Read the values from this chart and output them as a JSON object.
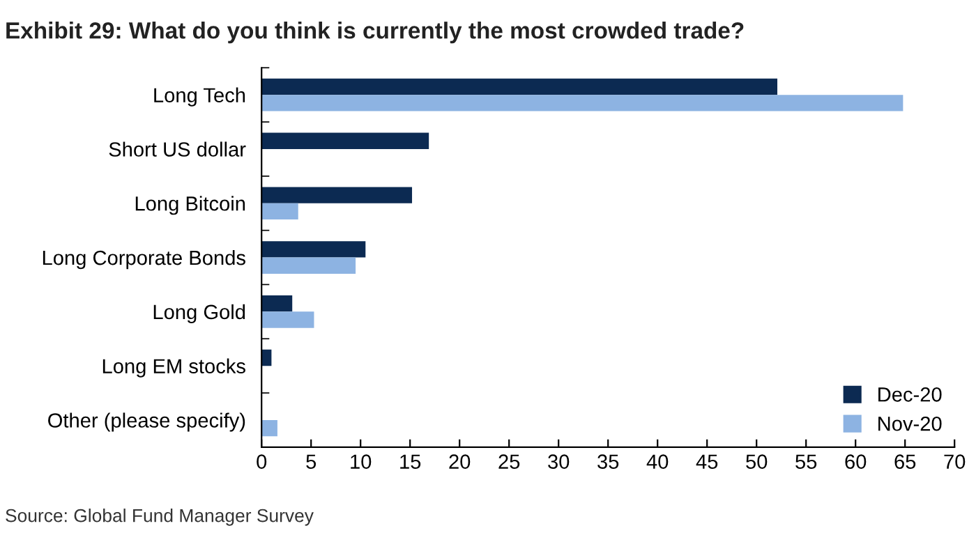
{
  "chart_data": {
    "type": "bar",
    "orientation": "horizontal",
    "title": "Exhibit 29: What do you think is currently the most crowded trade?",
    "categories": [
      "Long Tech",
      "Short US dollar",
      "Long Bitcoin",
      "Long Corporate Bonds",
      "Long Gold",
      "Long EM stocks",
      "Other (please specify)"
    ],
    "series": [
      {
        "name": "Dec-20",
        "color": "#0c2a52",
        "values": [
          52.1,
          16.9,
          15.2,
          10.5,
          3.1,
          1.0,
          0
        ]
      },
      {
        "name": "Nov-20",
        "color": "#8db3e2",
        "values": [
          64.8,
          0,
          3.7,
          9.5,
          5.3,
          0,
          1.6
        ]
      }
    ],
    "xlim": [
      0,
      70
    ],
    "xticks": [
      0,
      5,
      10,
      15,
      20,
      25,
      30,
      35,
      40,
      45,
      50,
      55,
      60,
      65,
      70
    ],
    "grid": false,
    "legend": "bottom right",
    "annotations": [
      "Source: Global Fund Manager Survey"
    ]
  }
}
